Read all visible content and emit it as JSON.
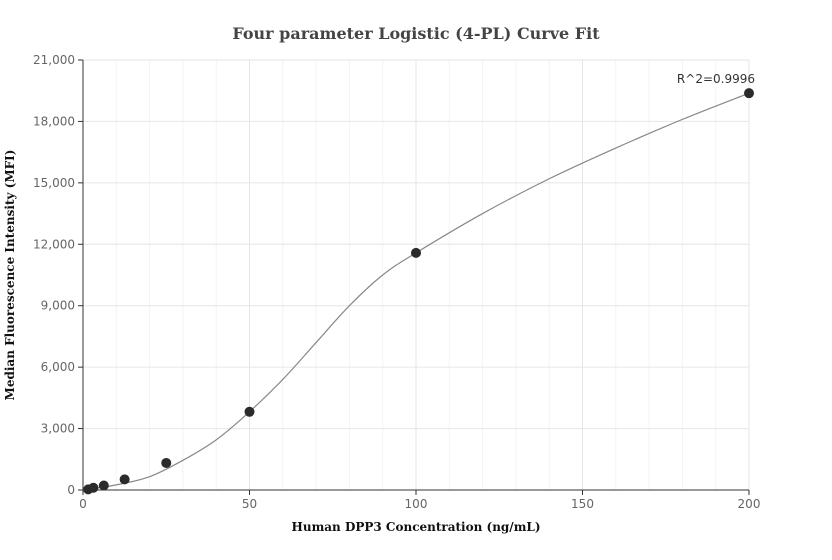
{
  "chart_data": {
    "type": "scatter",
    "title": "Four parameter Logistic (4-PL) Curve Fit",
    "xlabel": "Human DPP3 Concentration (ng/mL)",
    "ylabel": "Median Fluorescence Intensity (MFI)",
    "xlim": [
      0,
      200
    ],
    "ylim": [
      0,
      21000
    ],
    "x_ticks": [
      0,
      50,
      100,
      150,
      200
    ],
    "x_tick_labels": [
      "0",
      "50",
      "100",
      "150",
      "200"
    ],
    "y_ticks": [
      0,
      3000,
      6000,
      9000,
      12000,
      15000,
      18000,
      21000
    ],
    "y_tick_labels": [
      "0",
      "3,000",
      "6,000",
      "9,000",
      "12,000",
      "15,000",
      "18,000",
      "21,000"
    ],
    "grid": true,
    "points": [
      {
        "x": 1.5625,
        "y": 30
      },
      {
        "x": 3.125,
        "y": 110
      },
      {
        "x": 6.25,
        "y": 220
      },
      {
        "x": 12.5,
        "y": 520
      },
      {
        "x": 25,
        "y": 1320
      },
      {
        "x": 50,
        "y": 3820
      },
      {
        "x": 100,
        "y": 11580
      },
      {
        "x": 200,
        "y": 19380
      }
    ],
    "fit_curve": [
      [
        0,
        0
      ],
      [
        10,
        250
      ],
      [
        20,
        650
      ],
      [
        30,
        1450
      ],
      [
        40,
        2450
      ],
      [
        50,
        3820
      ],
      [
        60,
        5400
      ],
      [
        70,
        7200
      ],
      [
        80,
        9000
      ],
      [
        90,
        10500
      ],
      [
        100,
        11580
      ],
      [
        120,
        13500
      ],
      [
        140,
        15200
      ],
      [
        160,
        16700
      ],
      [
        180,
        18100
      ],
      [
        200,
        19380
      ]
    ],
    "annotations": [
      {
        "text": "R^2=0.9996",
        "x": 200,
        "y": 19380
      }
    ],
    "colors": {
      "points": "#2b2b2b",
      "curve": "#888888",
      "grid": "#e6e6e6"
    }
  }
}
